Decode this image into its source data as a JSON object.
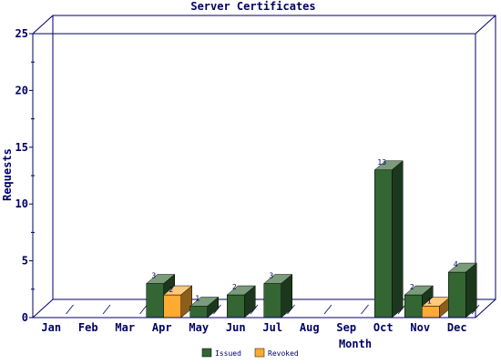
{
  "chart_data": {
    "type": "bar",
    "title": "Server Certificates",
    "xlabel": "Month",
    "ylabel": "Requests",
    "categories": [
      "Jan",
      "Feb",
      "Mar",
      "Apr",
      "May",
      "Jun",
      "Jul",
      "Aug",
      "Sep",
      "Oct",
      "Nov",
      "Dec"
    ],
    "ylim": [
      0,
      25
    ],
    "yticks": [
      0,
      5,
      10,
      15,
      20,
      25
    ],
    "series": [
      {
        "name": "Issued",
        "color": "#336633",
        "values": [
          0,
          0,
          0,
          3,
          1,
          2,
          3,
          0,
          0,
          13,
          2,
          4
        ]
      },
      {
        "name": "Revoked",
        "color": "#FFAA33",
        "values": [
          0,
          0,
          0,
          2,
          0,
          0,
          0,
          0,
          0,
          0,
          1,
          0
        ]
      }
    ],
    "grid": false,
    "legend_position": "bottom",
    "three_d": true
  }
}
